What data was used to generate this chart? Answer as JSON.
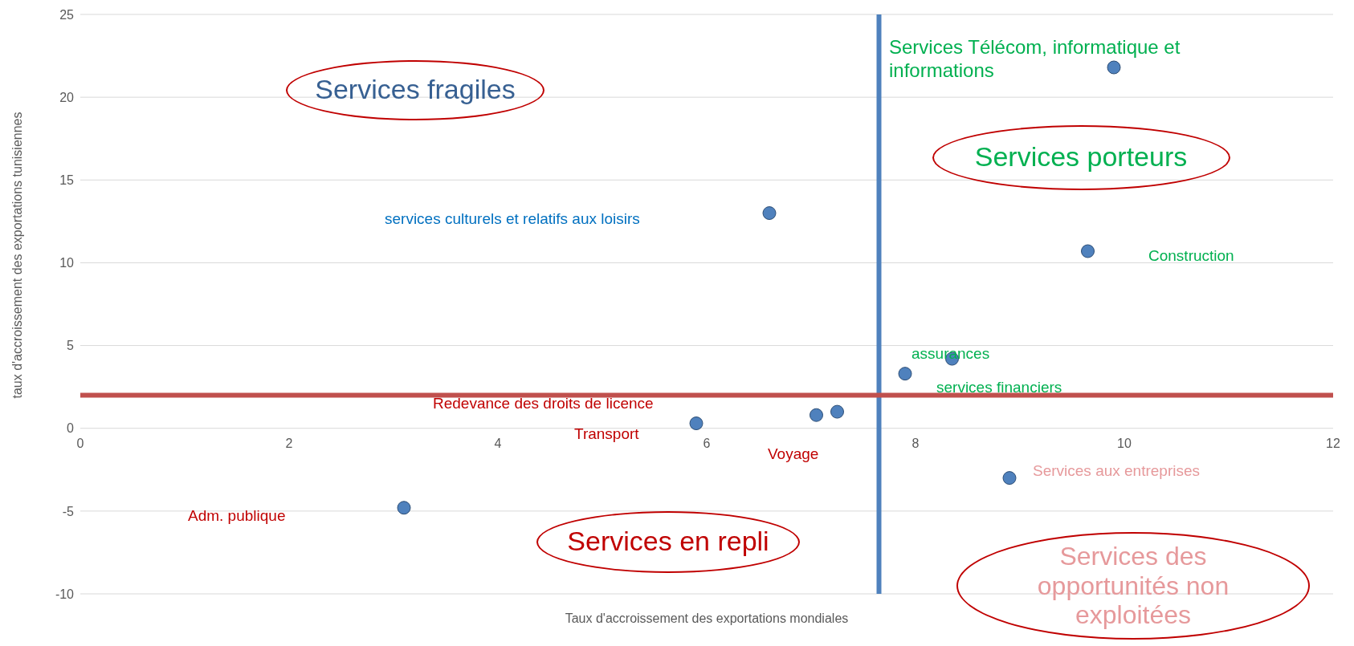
{
  "chart_data": {
    "type": "scatter",
    "xlabel": "Taux d'accroissement des exportations mondiales",
    "ylabel": "taux d'accroissement des exportations tunisiennes",
    "x": [
      9.9,
      6.6,
      9.65,
      8.35,
      7.9,
      7.25,
      7.05,
      5.9,
      8.9,
      3.1
    ],
    "values": [
      21.8,
      13,
      10.7,
      4.2,
      3.3,
      1.0,
      0.8,
      0.3,
      -3,
      -4.8
    ],
    "color": "#4f81bd",
    "marker": "circle",
    "xlim": [
      0,
      12
    ],
    "xticks": [
      0,
      2,
      4,
      6,
      8,
      10,
      12
    ],
    "ylim": [
      -10,
      25
    ],
    "yticks": [
      -10,
      -5,
      0,
      5,
      10,
      15,
      20,
      25
    ],
    "grid": "y",
    "ref_lines": [
      {
        "axis": "x",
        "value": 7.65,
        "color": "#4f81bd"
      },
      {
        "axis": "y",
        "value": 2,
        "color": "#c0504d"
      }
    ],
    "annotations": [
      "Services Télécom, informatique et informations",
      "services culturels et relatifs aux loisirs",
      "Construction",
      "assurances",
      "services financiers",
      "Redevance des droits de licence",
      "Voyage",
      "Transport",
      "Services aux entreprises",
      "Adm. publique",
      "Services fragiles",
      "Services porteurs",
      "Services en repli",
      "Services des opportunités non exploitées"
    ]
  }
}
